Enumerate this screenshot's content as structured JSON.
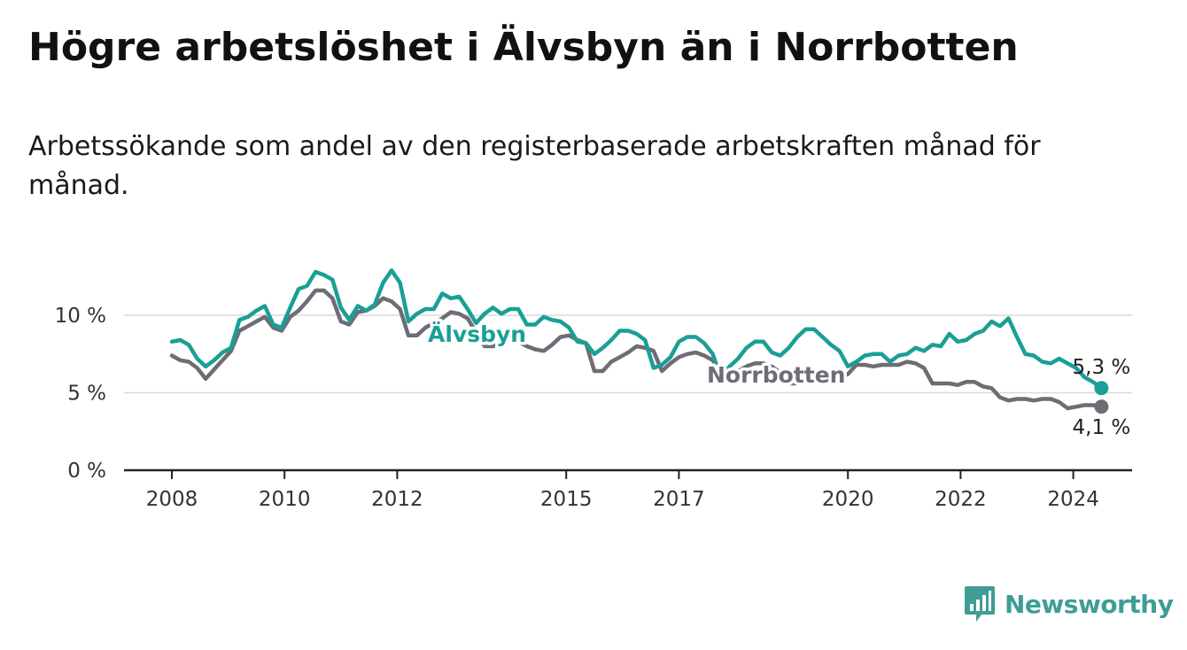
{
  "title": "Högre arbetslöshet i Älvsbyn än i Norrbotten",
  "subtitle": "Arbetssökande som andel av den registerbaserade arbetskraften månad för månad.",
  "brand": {
    "name": "Newsworthy",
    "icon": "bar-chart-badge-icon",
    "color": "#3f9d95"
  },
  "chart_data": {
    "type": "line",
    "title": "Högre arbetslöshet i Älvsbyn än i Norrbotten",
    "xlabel": "",
    "ylabel": "",
    "ylim": [
      0,
      13
    ],
    "xlim": [
      2008,
      2025.1
    ],
    "grid": true,
    "y_ticks": [
      {
        "value": 0,
        "label": "0 %"
      },
      {
        "value": 5,
        "label": "5 %"
      },
      {
        "value": 10,
        "label": "10 %"
      }
    ],
    "x_ticks": [
      {
        "value": 2008,
        "label": "2008"
      },
      {
        "value": 2010,
        "label": "2010"
      },
      {
        "value": 2012,
        "label": "2012"
      },
      {
        "value": 2015,
        "label": "2015"
      },
      {
        "value": 2017,
        "label": "2017"
      },
      {
        "value": 2020,
        "label": "2020"
      },
      {
        "value": 2022,
        "label": "2022"
      },
      {
        "value": 2024,
        "label": "2024"
      }
    ],
    "series": [
      {
        "name": "Norrbotten",
        "color": "#6e6c74",
        "label": "Norrbotten",
        "end_label": "4,1 %",
        "end_value": 4.1,
        "points": [
          [
            2008.0,
            7.4
          ],
          [
            2008.15,
            7.1
          ],
          [
            2008.3,
            7.0
          ],
          [
            2008.45,
            6.6
          ],
          [
            2008.6,
            5.9
          ],
          [
            2008.75,
            6.5
          ],
          [
            2008.9,
            7.1
          ],
          [
            2009.05,
            7.7
          ],
          [
            2009.2,
            9.0
          ],
          [
            2009.35,
            9.3
          ],
          [
            2009.5,
            9.6
          ],
          [
            2009.65,
            9.9
          ],
          [
            2009.8,
            9.2
          ],
          [
            2009.95,
            9.0
          ],
          [
            2010.1,
            9.9
          ],
          [
            2010.25,
            10.3
          ],
          [
            2010.4,
            10.9
          ],
          [
            2010.55,
            11.6
          ],
          [
            2010.7,
            11.6
          ],
          [
            2010.85,
            11.1
          ],
          [
            2011.0,
            9.6
          ],
          [
            2011.15,
            9.4
          ],
          [
            2011.3,
            10.2
          ],
          [
            2011.45,
            10.3
          ],
          [
            2011.6,
            10.6
          ],
          [
            2011.75,
            11.1
          ],
          [
            2011.9,
            10.9
          ],
          [
            2012.05,
            10.4
          ],
          [
            2012.2,
            8.7
          ],
          [
            2012.35,
            8.7
          ],
          [
            2012.5,
            9.2
          ],
          [
            2012.65,
            9.5
          ],
          [
            2012.8,
            9.8
          ],
          [
            2012.95,
            10.2
          ],
          [
            2013.1,
            10.1
          ],
          [
            2013.25,
            9.8
          ],
          [
            2013.4,
            8.9
          ],
          [
            2013.55,
            8.0
          ],
          [
            2013.7,
            8.0
          ],
          [
            2013.85,
            8.2
          ],
          [
            2014.0,
            8.5
          ],
          [
            2014.15,
            8.3
          ],
          [
            2014.3,
            8.0
          ],
          [
            2014.45,
            7.8
          ],
          [
            2014.6,
            7.7
          ],
          [
            2014.75,
            8.1
          ],
          [
            2014.9,
            8.6
          ],
          [
            2015.05,
            8.7
          ],
          [
            2015.2,
            8.4
          ],
          [
            2015.35,
            8.2
          ],
          [
            2015.5,
            6.4
          ],
          [
            2015.65,
            6.4
          ],
          [
            2015.8,
            7.0
          ],
          [
            2015.95,
            7.3
          ],
          [
            2016.1,
            7.6
          ],
          [
            2016.25,
            8.0
          ],
          [
            2016.4,
            7.9
          ],
          [
            2016.55,
            7.7
          ],
          [
            2016.7,
            6.4
          ],
          [
            2016.85,
            6.9
          ],
          [
            2017.0,
            7.3
          ],
          [
            2017.15,
            7.5
          ],
          [
            2017.3,
            7.6
          ],
          [
            2017.45,
            7.4
          ],
          [
            2017.6,
            7.1
          ],
          [
            2017.75,
            6.3
          ],
          [
            2017.9,
            6.2
          ],
          [
            2018.05,
            6.4
          ],
          [
            2018.2,
            6.7
          ],
          [
            2018.35,
            6.9
          ],
          [
            2018.5,
            6.9
          ],
          [
            2018.65,
            6.7
          ],
          [
            2018.8,
            6.3
          ],
          [
            2018.95,
            5.6
          ],
          [
            2019.1,
            5.6
          ],
          [
            2019.25,
            5.8
          ],
          [
            2019.4,
            6.0
          ],
          [
            2019.55,
            6.1
          ],
          [
            2019.7,
            6.1
          ],
          [
            2019.85,
            6.0
          ],
          [
            2020.0,
            6.2
          ],
          [
            2020.15,
            6.8
          ],
          [
            2020.3,
            6.8
          ],
          [
            2020.45,
            6.7
          ],
          [
            2020.6,
            6.8
          ],
          [
            2020.75,
            6.8
          ],
          [
            2020.9,
            6.8
          ],
          [
            2021.05,
            7.0
          ],
          [
            2021.2,
            6.9
          ],
          [
            2021.35,
            6.6
          ],
          [
            2021.5,
            5.6
          ],
          [
            2021.65,
            5.6
          ],
          [
            2021.8,
            5.6
          ],
          [
            2021.95,
            5.5
          ],
          [
            2022.1,
            5.7
          ],
          [
            2022.25,
            5.7
          ],
          [
            2022.4,
            5.4
          ],
          [
            2022.55,
            5.3
          ],
          [
            2022.7,
            4.7
          ],
          [
            2022.85,
            4.5
          ],
          [
            2023.0,
            4.6
          ],
          [
            2023.15,
            4.6
          ],
          [
            2023.3,
            4.5
          ],
          [
            2023.45,
            4.6
          ],
          [
            2023.6,
            4.6
          ],
          [
            2023.75,
            4.4
          ],
          [
            2023.9,
            4.0
          ],
          [
            2024.05,
            4.1
          ],
          [
            2024.2,
            4.2
          ],
          [
            2024.35,
            4.2
          ],
          [
            2024.5,
            4.1
          ]
        ]
      },
      {
        "name": "Älvsbyn",
        "color": "#1a9f96",
        "label": "Älvsbyn",
        "end_label": "5,3 %",
        "end_value": 5.3,
        "points": [
          [
            2008.0,
            8.3
          ],
          [
            2008.15,
            8.4
          ],
          [
            2008.3,
            8.1
          ],
          [
            2008.45,
            7.2
          ],
          [
            2008.6,
            6.7
          ],
          [
            2008.75,
            7.1
          ],
          [
            2008.9,
            7.6
          ],
          [
            2009.05,
            7.9
          ],
          [
            2009.2,
            9.7
          ],
          [
            2009.35,
            9.9
          ],
          [
            2009.5,
            10.3
          ],
          [
            2009.65,
            10.6
          ],
          [
            2009.8,
            9.4
          ],
          [
            2009.95,
            9.2
          ],
          [
            2010.1,
            10.5
          ],
          [
            2010.25,
            11.7
          ],
          [
            2010.4,
            11.9
          ],
          [
            2010.55,
            12.8
          ],
          [
            2010.7,
            12.6
          ],
          [
            2010.85,
            12.3
          ],
          [
            2011.0,
            10.5
          ],
          [
            2011.15,
            9.7
          ],
          [
            2011.3,
            10.6
          ],
          [
            2011.45,
            10.3
          ],
          [
            2011.6,
            10.7
          ],
          [
            2011.75,
            12.1
          ],
          [
            2011.9,
            12.9
          ],
          [
            2012.05,
            12.1
          ],
          [
            2012.2,
            9.6
          ],
          [
            2012.35,
            10.1
          ],
          [
            2012.5,
            10.4
          ],
          [
            2012.65,
            10.4
          ],
          [
            2012.8,
            11.4
          ],
          [
            2012.95,
            11.1
          ],
          [
            2013.1,
            11.2
          ],
          [
            2013.25,
            10.4
          ],
          [
            2013.4,
            9.5
          ],
          [
            2013.55,
            10.1
          ],
          [
            2013.7,
            10.5
          ],
          [
            2013.85,
            10.1
          ],
          [
            2014.0,
            10.4
          ],
          [
            2014.15,
            10.4
          ],
          [
            2014.3,
            9.4
          ],
          [
            2014.45,
            9.4
          ],
          [
            2014.6,
            9.9
          ],
          [
            2014.75,
            9.7
          ],
          [
            2014.9,
            9.6
          ],
          [
            2015.05,
            9.2
          ],
          [
            2015.2,
            8.3
          ],
          [
            2015.35,
            8.2
          ],
          [
            2015.5,
            7.5
          ],
          [
            2015.65,
            7.9
          ],
          [
            2015.8,
            8.4
          ],
          [
            2015.95,
            9.0
          ],
          [
            2016.1,
            9.0
          ],
          [
            2016.25,
            8.8
          ],
          [
            2016.4,
            8.4
          ],
          [
            2016.55,
            6.6
          ],
          [
            2016.7,
            6.8
          ],
          [
            2016.85,
            7.3
          ],
          [
            2017.0,
            8.3
          ],
          [
            2017.15,
            8.6
          ],
          [
            2017.3,
            8.6
          ],
          [
            2017.45,
            8.2
          ],
          [
            2017.6,
            7.5
          ],
          [
            2017.75,
            5.9
          ],
          [
            2017.9,
            6.7
          ],
          [
            2018.05,
            7.2
          ],
          [
            2018.2,
            7.9
          ],
          [
            2018.35,
            8.3
          ],
          [
            2018.5,
            8.3
          ],
          [
            2018.65,
            7.6
          ],
          [
            2018.8,
            7.4
          ],
          [
            2018.95,
            7.9
          ],
          [
            2019.1,
            8.6
          ],
          [
            2019.25,
            9.1
          ],
          [
            2019.4,
            9.1
          ],
          [
            2019.55,
            8.6
          ],
          [
            2019.7,
            8.1
          ],
          [
            2019.85,
            7.7
          ],
          [
            2020.0,
            6.7
          ],
          [
            2020.15,
            7.0
          ],
          [
            2020.3,
            7.4
          ],
          [
            2020.45,
            7.5
          ],
          [
            2020.6,
            7.5
          ],
          [
            2020.75,
            7.0
          ],
          [
            2020.9,
            7.4
          ],
          [
            2021.05,
            7.5
          ],
          [
            2021.2,
            7.9
          ],
          [
            2021.35,
            7.7
          ],
          [
            2021.5,
            8.1
          ],
          [
            2021.65,
            8.0
          ],
          [
            2021.8,
            8.8
          ],
          [
            2021.95,
            8.3
          ],
          [
            2022.1,
            8.4
          ],
          [
            2022.25,
            8.8
          ],
          [
            2022.4,
            9.0
          ],
          [
            2022.55,
            9.6
          ],
          [
            2022.7,
            9.3
          ],
          [
            2022.85,
            9.8
          ],
          [
            2023.0,
            8.6
          ],
          [
            2023.15,
            7.5
          ],
          [
            2023.3,
            7.4
          ],
          [
            2023.45,
            7.0
          ],
          [
            2023.6,
            6.9
          ],
          [
            2023.75,
            7.2
          ],
          [
            2023.9,
            6.9
          ],
          [
            2024.05,
            6.6
          ],
          [
            2024.2,
            6.0
          ],
          [
            2024.35,
            5.7
          ],
          [
            2024.5,
            5.3
          ]
        ]
      }
    ]
  }
}
